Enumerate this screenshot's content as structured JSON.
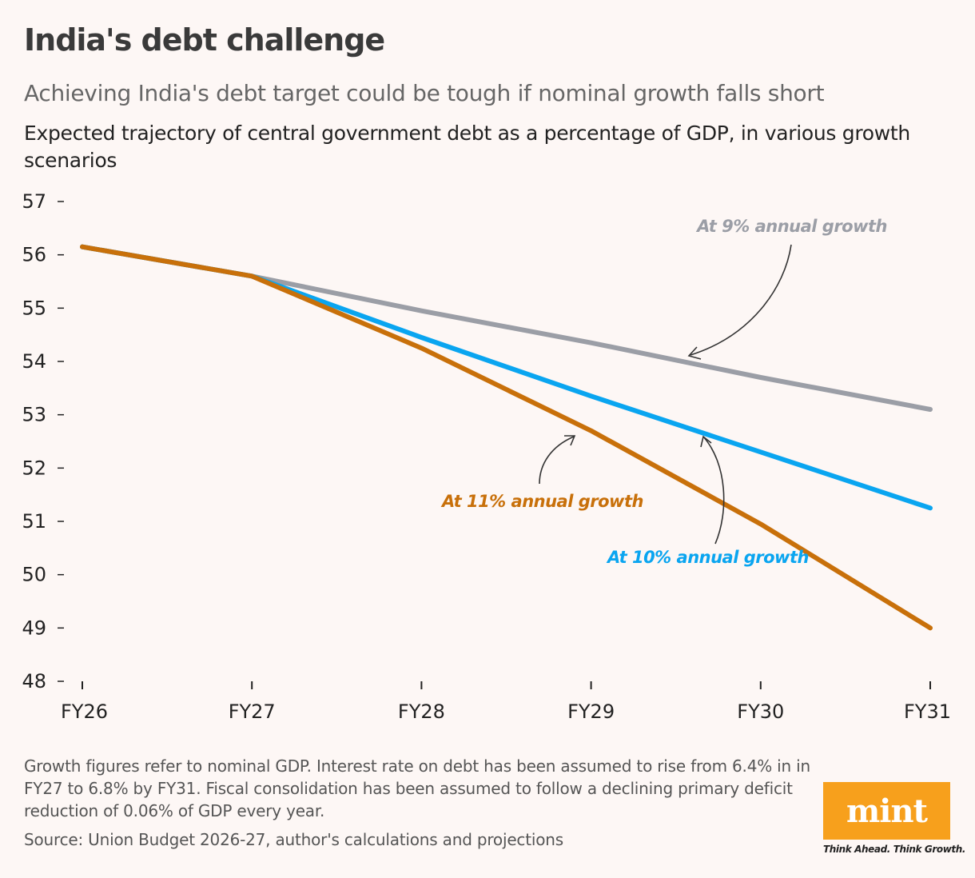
{
  "header": {
    "title": "India's debt challenge",
    "subtitle": "Achieving India's debt target could be tough if nominal growth falls short",
    "description": "Expected trajectory of central government debt as a percentage of GDP, in various growth scenarios"
  },
  "chart_data": {
    "type": "line",
    "categories": [
      "FY26",
      "FY27",
      "FY28",
      "FY29",
      "FY30",
      "FY31"
    ],
    "ylim": [
      48,
      57
    ],
    "yticks": [
      57,
      56,
      55,
      54,
      53,
      52,
      51,
      50,
      49,
      48
    ],
    "grid": false,
    "series": [
      {
        "name": "At 9% annual growth",
        "color": "#9b9ea6",
        "values": [
          56.15,
          55.6,
          54.95,
          54.35,
          53.7,
          53.1
        ]
      },
      {
        "name": "At 10% annual growth",
        "color": "#0aa5f0",
        "values": [
          56.15,
          55.6,
          54.45,
          53.35,
          52.3,
          51.25
        ]
      },
      {
        "name": "At 11% annual growth",
        "color": "#c8700a",
        "values": [
          56.15,
          55.6,
          54.25,
          52.7,
          50.95,
          49.0
        ]
      }
    ]
  },
  "footer": {
    "notes": "Growth figures refer to nominal GDP. Interest rate on debt has been assumed to rise from 6.4% in in FY27 to 6.8% by FY31. Fiscal consolidation has been assumed to follow a declining primary deficit reduction of 0.06% of GDP every year.",
    "source": "Source: Union Budget 2026-27, author's calculations and projections"
  },
  "brand": {
    "logo_text": "mint",
    "tagline": "Think Ahead. Think Growth.",
    "color": "#f7a01c"
  }
}
